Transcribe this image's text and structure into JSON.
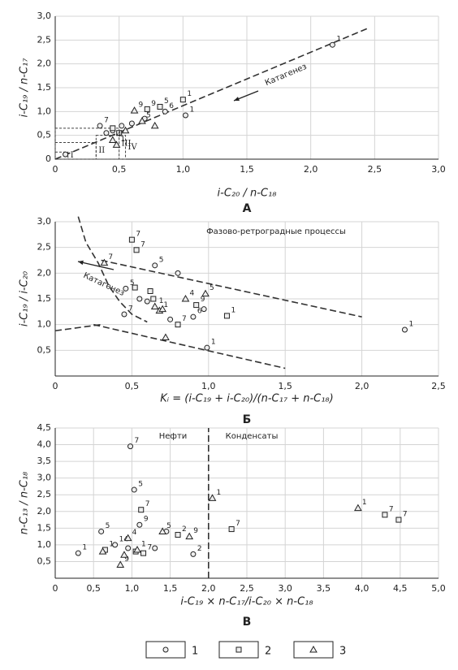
{
  "chart_data": [
    {
      "type": "scatter",
      "panel": "А",
      "xlabel": "i-C₂₀ / n-C₁₈",
      "ylabel": "i-C₁₉ / n-C₁₇",
      "grid": true,
      "xlim": [
        0,
        3
      ],
      "ylim": [
        0,
        3
      ],
      "xticks": [
        0,
        {
          "value": 0.5,
          "label": "0,5"
        },
        {
          "value": 1,
          "label": "1,0"
        },
        {
          "value": 1.5,
          "label": "1,5"
        },
        {
          "value": 2,
          "label": "2,0"
        },
        {
          "value": 2.5,
          "label": "2,5"
        },
        {
          "value": 3,
          "label": "3,0"
        }
      ],
      "yticks": [
        0,
        {
          "value": 0.5,
          "label": "0,5"
        },
        {
          "value": 1,
          "label": "1,0"
        },
        {
          "value": 1.5,
          "label": "1,5"
        },
        {
          "value": 2,
          "label": "2,0"
        },
        {
          "value": 2.5,
          "label": "2,5"
        },
        {
          "value": 3,
          "label": "3,0"
        }
      ],
      "series": [
        {
          "name": "1",
          "marker": "circle",
          "color": "#222",
          "x": [
            2.17,
            1.02,
            0.86,
            0.7,
            0.6,
            0.52,
            0.45,
            0.4,
            0.35,
            0.08
          ],
          "values": [
            2.4,
            0.92,
            1.0,
            0.85,
            0.75,
            0.7,
            0.6,
            0.55,
            0.7,
            0.1
          ],
          "labels": [
            "1",
            "1",
            "6",
            null,
            null,
            null,
            null,
            null,
            "7",
            null
          ]
        },
        {
          "name": "2",
          "marker": "square",
          "color": "#222",
          "x": [
            1.0,
            0.82,
            0.72,
            0.45,
            0.5
          ],
          "values": [
            1.25,
            1.1,
            1.05,
            0.65,
            0.55
          ],
          "labels": [
            "1",
            "5",
            "9",
            null,
            null
          ]
        },
        {
          "name": "3",
          "marker": "triangle",
          "color": "#222",
          "x": [
            0.62,
            0.78,
            0.48,
            0.45,
            0.55,
            0.68
          ],
          "values": [
            1.02,
            0.7,
            0.3,
            0.4,
            0.6,
            0.8
          ],
          "labels": [
            "9",
            null,
            "1",
            "4",
            null,
            "5"
          ]
        }
      ],
      "lines": [
        {
          "x": [
            0,
            2.45
          ],
          "y": [
            0,
            2.75
          ]
        }
      ],
      "regions": [
        {
          "label": "I",
          "x": [
            0,
            0.1
          ],
          "y": [
            0,
            0.15
          ]
        },
        {
          "label": "II",
          "x": [
            0,
            0.32
          ],
          "y": [
            0,
            0.35
          ]
        },
        {
          "label": "III",
          "x": [
            0,
            0.5
          ],
          "y": [
            0,
            0.65
          ]
        },
        {
          "label": "IV",
          "x": [
            0.32,
            0.55
          ],
          "y": [
            0,
            0.5
          ]
        }
      ],
      "annotations": [
        "Катагенез"
      ]
    },
    {
      "type": "scatter",
      "panel": "Б",
      "xlabel": "Kᵢ = (i-C₁₉ + i-C₂₀)/(n-C₁₇ + n-C₁₈)",
      "ylabel": "i-C₁₉ / i-C₂₀",
      "grid": true,
      "xlim": [
        0,
        2.5
      ],
      "ylim": [
        0,
        3
      ],
      "xticks": [
        0,
        {
          "value": 0.5,
          "label": "0,5"
        },
        {
          "value": 1,
          "label": "1,0"
        },
        {
          "value": 1.5,
          "label": "1,5"
        },
        {
          "value": 2,
          "label": "2,0"
        },
        {
          "value": 2.5,
          "label": "2,5"
        }
      ],
      "yticks": [
        {
          "value": 0.5,
          "label": "0,5"
        },
        {
          "value": 1,
          "label": "1,0"
        },
        {
          "value": 1.5,
          "label": "1,5"
        },
        {
          "value": 2,
          "label": "2,0"
        },
        {
          "value": 2.5,
          "label": "2,5"
        },
        {
          "value": 3,
          "label": "3,0"
        }
      ],
      "series": [
        {
          "name": "1",
          "marker": "circle",
          "color": "#222",
          "x": [
            2.28,
            0.99,
            0.8,
            0.65,
            0.46,
            0.55,
            0.9,
            0.6,
            0.45,
            0.75,
            0.97
          ],
          "values": [
            0.9,
            0.55,
            2.0,
            2.15,
            1.7,
            1.5,
            1.15,
            1.45,
            1.2,
            1.1,
            1.3
          ],
          "labels": [
            "1",
            "1",
            null,
            "5",
            "5",
            null,
            "6",
            null,
            "7",
            null,
            null
          ]
        },
        {
          "name": "2",
          "marker": "square",
          "color": "#222",
          "x": [
            0.5,
            0.53,
            0.52,
            0.62,
            0.64,
            1.12,
            0.8,
            0.92
          ],
          "values": [
            2.65,
            2.45,
            1.72,
            1.65,
            1.5,
            1.17,
            1.0,
            1.38
          ],
          "labels": [
            "7",
            "7",
            null,
            null,
            null,
            "1",
            "7",
            "9"
          ]
        },
        {
          "name": "3",
          "marker": "triangle",
          "color": "#222",
          "x": [
            0.32,
            0.65,
            0.68,
            0.85,
            0.98,
            0.72,
            0.7
          ],
          "values": [
            2.2,
            1.35,
            1.27,
            1.5,
            1.6,
            0.75,
            1.3
          ],
          "labels": [
            "7",
            "1",
            "1",
            "4",
            "5",
            null,
            null
          ]
        }
      ],
      "lines": [
        {
          "x": [
            0.15,
            0.2,
            0.28,
            0.35,
            0.42,
            0.5,
            0.6
          ],
          "y": [
            3.1,
            2.6,
            2.2,
            1.75,
            1.45,
            1.2,
            1.05
          ]
        },
        {
          "x": [
            0.3,
            2.0
          ],
          "y": [
            2.25,
            1.15
          ]
        },
        {
          "x": [
            0.25,
            1.5
          ],
          "y": [
            1.0,
            0.15
          ]
        },
        {
          "x": [
            0,
            0.3
          ],
          "y": [
            0.88,
            1.0
          ]
        }
      ],
      "regions": [],
      "annotations": [
        "Фазово-ретроградные процессы",
        "Катагенез"
      ]
    },
    {
      "type": "scatter",
      "panel": "В",
      "xlabel": "i-C₁₉ × n-C₁₇/i-C₂₀ × n-C₁₈",
      "ylabel": "n-C₁₃ / n-C₁₈",
      "grid": true,
      "xlim": [
        0,
        5
      ],
      "ylim": [
        0,
        4.5
      ],
      "xticks": [
        0,
        {
          "value": 0.5,
          "label": "0,5"
        },
        {
          "value": 1,
          "label": "1,0"
        },
        {
          "value": 1.5,
          "label": "1,5"
        },
        {
          "value": 2,
          "label": "2,0"
        },
        {
          "value": 2.5,
          "label": "2,5"
        },
        {
          "value": 3,
          "label": "3,0"
        },
        {
          "value": 3.5,
          "label": "3,5"
        },
        {
          "value": 4,
          "label": "4,0"
        },
        {
          "value": 4.5,
          "label": "4,5"
        },
        {
          "value": 5,
          "label": "5,0"
        }
      ],
      "yticks": [
        {
          "value": 0.5,
          "label": "0,5"
        },
        {
          "value": 1,
          "label": "1,0"
        },
        {
          "value": 1.5,
          "label": "1,5"
        },
        {
          "value": 2,
          "label": "2,0"
        },
        {
          "value": 2.5,
          "label": "2,5"
        },
        {
          "value": 3,
          "label": "3,0"
        },
        {
          "value": 3.5,
          "label": "3,5"
        },
        {
          "value": 4,
          "label": "4,0"
        },
        {
          "value": 4.5,
          "label": "4,5"
        }
      ],
      "series": [
        {
          "name": "1",
          "marker": "circle",
          "color": "#222",
          "x": [
            0.3,
            0.6,
            0.98,
            1.03,
            0.78,
            1.8,
            1.3,
            1.45,
            1.1,
            0.95
          ],
          "values": [
            0.75,
            1.4,
            3.95,
            2.65,
            1.0,
            0.72,
            0.9,
            1.4,
            1.6,
            0.9
          ],
          "labels": [
            "1",
            "5",
            "7",
            "5",
            "14",
            "2",
            null,
            null,
            "9",
            null
          ]
        },
        {
          "name": "2",
          "marker": "square",
          "color": "#222",
          "x": [
            1.12,
            2.3,
            4.3,
            4.48,
            0.65,
            1.05,
            1.6,
            1.15
          ],
          "values": [
            2.05,
            1.47,
            1.9,
            1.75,
            0.85,
            0.8,
            1.3,
            0.75
          ],
          "labels": [
            "7",
            "7",
            "7",
            "7",
            "1",
            null,
            "2",
            "7"
          ]
        },
        {
          "name": "3",
          "marker": "triangle",
          "color": "#222",
          "x": [
            2.05,
            3.95,
            0.85,
            0.62,
            1.4,
            1.75,
            0.95,
            1.07,
            0.9
          ],
          "values": [
            2.4,
            2.1,
            0.4,
            0.8,
            1.4,
            1.25,
            1.2,
            0.85,
            0.7
          ],
          "labels": [
            "1",
            "1",
            "9",
            null,
            "5",
            "9",
            "4",
            "1",
            null
          ]
        }
      ],
      "lines": [
        {
          "x": [
            2.0,
            2.0
          ],
          "y": [
            0,
            4.5
          ]
        }
      ],
      "regions": [],
      "annotations": [
        "Нефти",
        "Конденсаты"
      ]
    }
  ]
}
